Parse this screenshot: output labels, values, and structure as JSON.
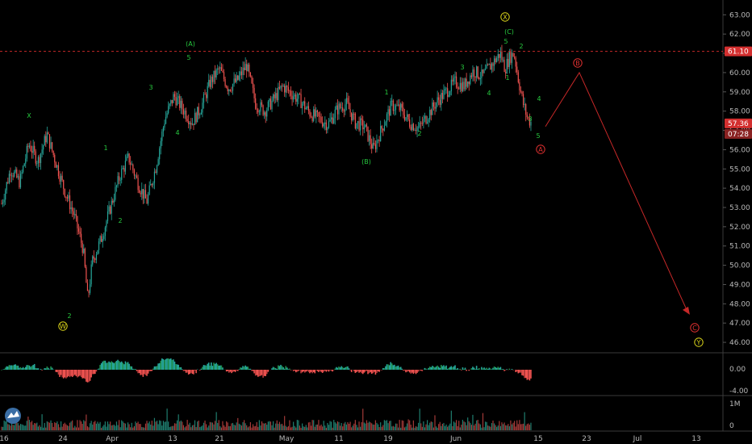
{
  "chart_data": [
    {
      "type": "candlestick",
      "name_on_chart": "",
      "y_axis": {
        "ticks": [
          "63.00",
          "62.00",
          "61.00",
          "60.00",
          "59.00",
          "58.00",
          "57.00",
          "56.00",
          "55.00",
          "54.00",
          "53.00",
          "52.00",
          "51.00",
          "50.00",
          "49.00",
          "48.00",
          "47.00",
          "46.00"
        ],
        "ylim": [
          45.5,
          63.6
        ]
      },
      "x_axis": {
        "ticks": [
          "16",
          "24",
          "Apr",
          "13",
          "21",
          "May",
          "11",
          "19",
          "Jun",
          "15",
          "23",
          "Jul",
          "13"
        ]
      },
      "price_markers": [
        {
          "value": 61.1,
          "label": "61.10",
          "style": "dashed-red"
        },
        {
          "value": 57.36,
          "label": "57.36",
          "style": "current"
        },
        {
          "label": "07:28",
          "style": "countdown"
        }
      ],
      "series_close_path": [
        {
          "x": 0,
          "y": 53.2
        },
        {
          "x": 2,
          "y": 55.0
        },
        {
          "x": 4,
          "y": 54.3
        },
        {
          "x": 6,
          "y": 56.3
        },
        {
          "x": 8,
          "y": 55.4
        },
        {
          "x": 10,
          "y": 56.8
        },
        {
          "x": 12,
          "y": 55.3
        },
        {
          "x": 14,
          "y": 53.8
        },
        {
          "x": 16,
          "y": 52.6
        },
        {
          "x": 18,
          "y": 50.8
        },
        {
          "x": 19,
          "y": 48.2
        },
        {
          "x": 20,
          "y": 50.2
        },
        {
          "x": 22,
          "y": 51.4
        },
        {
          "x": 24,
          "y": 53.0
        },
        {
          "x": 26,
          "y": 54.6
        },
        {
          "x": 28,
          "y": 55.6
        },
        {
          "x": 30,
          "y": 54.3
        },
        {
          "x": 32,
          "y": 53.3
        },
        {
          "x": 34,
          "y": 55.1
        },
        {
          "x": 36,
          "y": 57.6
        },
        {
          "x": 38,
          "y": 58.8
        },
        {
          "x": 40,
          "y": 58.1
        },
        {
          "x": 42,
          "y": 57.4
        },
        {
          "x": 44,
          "y": 58.2
        },
        {
          "x": 46,
          "y": 59.5
        },
        {
          "x": 48,
          "y": 60.2
        },
        {
          "x": 50,
          "y": 59.2
        },
        {
          "x": 52,
          "y": 59.6
        },
        {
          "x": 54,
          "y": 60.4
        },
        {
          "x": 56,
          "y": 58.4
        },
        {
          "x": 58,
          "y": 58.0
        },
        {
          "x": 60,
          "y": 58.6
        },
        {
          "x": 62,
          "y": 59.3
        },
        {
          "x": 64,
          "y": 58.9
        },
        {
          "x": 66,
          "y": 58.5
        },
        {
          "x": 68,
          "y": 57.9
        },
        {
          "x": 70,
          "y": 57.6
        },
        {
          "x": 72,
          "y": 57.3
        },
        {
          "x": 74,
          "y": 58.1
        },
        {
          "x": 76,
          "y": 58.4
        },
        {
          "x": 78,
          "y": 57.4
        },
        {
          "x": 80,
          "y": 57.2
        },
        {
          "x": 82,
          "y": 56.0
        },
        {
          "x": 84,
          "y": 57.2
        },
        {
          "x": 86,
          "y": 58.3
        },
        {
          "x": 88,
          "y": 58.1
        },
        {
          "x": 90,
          "y": 57.4
        },
        {
          "x": 92,
          "y": 57.1
        },
        {
          "x": 94,
          "y": 57.8
        },
        {
          "x": 96,
          "y": 58.5
        },
        {
          "x": 98,
          "y": 59.0
        },
        {
          "x": 100,
          "y": 59.5
        },
        {
          "x": 102,
          "y": 59.3
        },
        {
          "x": 104,
          "y": 60.1
        },
        {
          "x": 106,
          "y": 59.8
        },
        {
          "x": 108,
          "y": 60.4
        },
        {
          "x": 110,
          "y": 61.0
        },
        {
          "x": 111,
          "y": 60.2
        },
        {
          "x": 112,
          "y": 60.8
        },
        {
          "x": 113,
          "y": 61.0
        },
        {
          "x": 114,
          "y": 59.6
        },
        {
          "x": 115,
          "y": 58.4
        },
        {
          "x": 116,
          "y": 57.6
        },
        {
          "x": 117,
          "y": 57.36
        }
      ],
      "projection_path": [
        {
          "label": "A",
          "value": 57.2
        },
        {
          "label": "B",
          "value": 60.0
        },
        {
          "label": "C",
          "value": 47.6
        }
      ],
      "wave_labels": [
        {
          "text": "X",
          "color": "green"
        },
        {
          "text": "1",
          "color": "green"
        },
        {
          "text": "2",
          "color": "green"
        },
        {
          "text": "3",
          "color": "green"
        },
        {
          "text": "4",
          "color": "green"
        },
        {
          "text": "5",
          "color": "green"
        },
        {
          "text": "(A)",
          "color": "green"
        },
        {
          "text": "(B)",
          "color": "green"
        },
        {
          "text": "(C)",
          "color": "green"
        },
        {
          "text": "W",
          "color": "yellow",
          "circled": true
        },
        {
          "text": "X",
          "color": "yellow",
          "circled": true
        },
        {
          "text": "Y",
          "color": "yellow",
          "circled": true
        },
        {
          "text": "A",
          "color": "red",
          "circled": true
        },
        {
          "text": "B",
          "color": "red",
          "circled": true
        },
        {
          "text": "C",
          "color": "red",
          "circled": true
        }
      ]
    },
    {
      "type": "histogram",
      "name_on_chart": "",
      "y_axis": {
        "ticks": [
          "0.00",
          "-4.00"
        ]
      }
    },
    {
      "type": "bar",
      "name_on_chart": "",
      "y_axis": {
        "ticks": [
          "1M",
          "0"
        ]
      }
    }
  ],
  "colors": {
    "up": "#26a69a",
    "down": "#ef5350",
    "wave_green": "#27c93f",
    "wave_yellow": "#d8d21a",
    "wave_red": "#e03030",
    "projection": "#c62828",
    "grid_border": "#555555"
  }
}
